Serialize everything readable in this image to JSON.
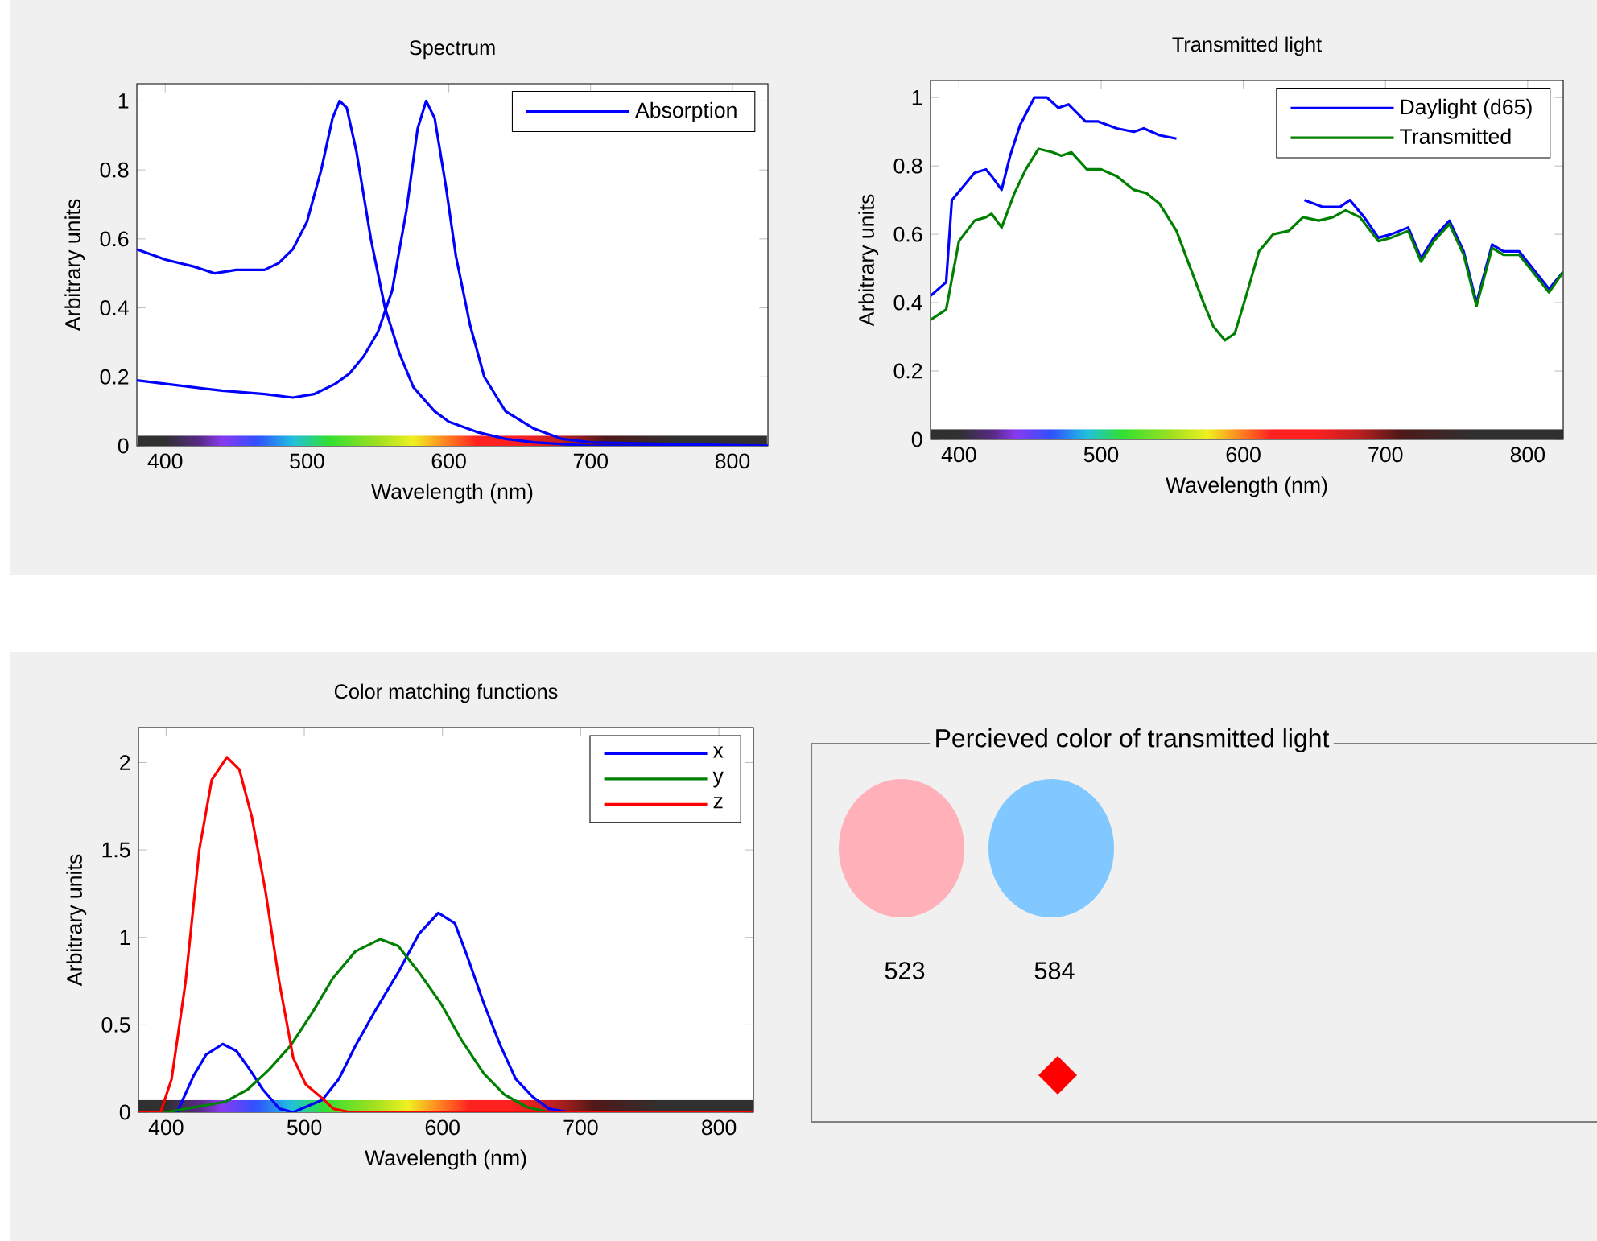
{
  "chart_data": [
    {
      "type": "line",
      "title": "Spectrum",
      "xlabel": "Wavelength (nm)",
      "ylabel": "Arbitrary units",
      "xlim": [
        380,
        825
      ],
      "ylim": [
        0,
        1.05
      ],
      "xticks": [
        400,
        500,
        600,
        700,
        800
      ],
      "yticks": [
        0,
        0.2,
        0.4,
        0.6,
        0.8,
        1
      ],
      "legend": "top right",
      "bands": [
        {
          "axis": "y",
          "from": 0,
          "to": 0.03
        }
      ],
      "series": [
        {
          "name": "Absorption",
          "color": "#0000ff",
          "x": [
            380,
            400,
            420,
            435,
            450,
            470,
            480,
            490,
            500,
            510,
            518,
            523,
            528,
            535,
            545,
            555,
            565,
            575,
            590,
            600,
            620,
            640,
            660,
            700,
            825
          ],
          "values": [
            0.57,
            0.54,
            0.52,
            0.5,
            0.51,
            0.51,
            0.53,
            0.57,
            0.65,
            0.8,
            0.95,
            1.0,
            0.98,
            0.85,
            0.6,
            0.4,
            0.27,
            0.17,
            0.1,
            0.07,
            0.04,
            0.02,
            0.01,
            0.0,
            0.0
          ]
        },
        {
          "color": "#0000ff",
          "x": [
            380,
            400,
            440,
            470,
            490,
            505,
            520,
            530,
            540,
            550,
            560,
            570,
            578,
            584,
            590,
            598,
            605,
            615,
            625,
            640,
            660,
            680,
            700,
            825
          ],
          "values": [
            0.19,
            0.18,
            0.16,
            0.15,
            0.14,
            0.15,
            0.18,
            0.21,
            0.26,
            0.33,
            0.45,
            0.68,
            0.92,
            1.0,
            0.95,
            0.75,
            0.55,
            0.35,
            0.2,
            0.1,
            0.05,
            0.02,
            0.01,
            0.0
          ]
        }
      ]
    },
    {
      "type": "line",
      "title": "Transmitted light",
      "xlabel": "Wavelength (nm)",
      "ylabel": "Arbitrary units",
      "xlim": [
        380,
        825
      ],
      "ylim": [
        0,
        1.05
      ],
      "xticks": [
        400,
        500,
        600,
        700,
        800
      ],
      "yticks": [
        0,
        0.2,
        0.4,
        0.6,
        0.8,
        1
      ],
      "legend": "top right",
      "bands": [
        {
          "axis": "y",
          "from": 0,
          "to": 0.03
        }
      ],
      "series": [
        {
          "name": "Daylight (d65)",
          "color": "#0000ff",
          "x": [
            380,
            391,
            395,
            405,
            411,
            419,
            423,
            430,
            436,
            443,
            453,
            462,
            470,
            477,
            489,
            498,
            511,
            523,
            530,
            541,
            553,
            575,
            600,
            620,
            643,
            656,
            668,
            675,
            685,
            695,
            704,
            716,
            725,
            734,
            745,
            755,
            764,
            775,
            783,
            794,
            815,
            825
          ],
          "values": [
            0.42,
            0.46,
            0.7,
            0.75,
            0.78,
            0.79,
            0.77,
            0.73,
            0.83,
            0.92,
            1.0,
            1.0,
            0.97,
            0.98,
            0.93,
            0.93,
            0.91,
            0.9,
            0.91,
            0.89,
            0.88,
            null,
            null,
            null,
            0.7,
            0.68,
            0.68,
            0.7,
            0.65,
            0.59,
            0.6,
            0.62,
            0.53,
            0.59,
            0.64,
            0.55,
            0.4,
            0.57,
            0.55,
            0.55,
            0.44,
            0.49
          ]
        },
        {
          "name": "Transmitted",
          "color": "#008000",
          "x": [
            380,
            391,
            400,
            411,
            419,
            423,
            430,
            439,
            447,
            456,
            466,
            472,
            479,
            490,
            500,
            511,
            523,
            532,
            541,
            553,
            562,
            572,
            579,
            587,
            594,
            602,
            611,
            621,
            632,
            642,
            653,
            663,
            672,
            682,
            695,
            704,
            716,
            725,
            734,
            745,
            755,
            764,
            775,
            783,
            794,
            815,
            825
          ],
          "values": [
            0.35,
            0.38,
            0.58,
            0.64,
            0.65,
            0.66,
            0.62,
            0.72,
            0.79,
            0.85,
            0.84,
            0.83,
            0.84,
            0.79,
            0.79,
            0.77,
            0.73,
            0.72,
            0.69,
            0.61,
            0.51,
            0.4,
            0.33,
            0.29,
            0.31,
            0.42,
            0.55,
            0.6,
            0.61,
            0.65,
            0.64,
            0.65,
            0.67,
            0.65,
            0.58,
            0.59,
            0.61,
            0.52,
            0.58,
            0.63,
            0.54,
            0.39,
            0.56,
            0.54,
            0.54,
            0.43,
            0.49
          ]
        }
      ]
    },
    {
      "type": "line",
      "title": "Color matching functions",
      "xlabel": "Wavelength (nm)",
      "ylabel": "Arbitrary units",
      "xlim": [
        380,
        825
      ],
      "ylim": [
        0,
        2.2
      ],
      "xticks": [
        400,
        500,
        600,
        700,
        800
      ],
      "yticks": [
        0,
        0.5,
        1,
        1.5,
        2
      ],
      "legend": "top right",
      "bands": [
        {
          "axis": "y",
          "from": 0,
          "to": 0.07
        }
      ],
      "series": [
        {
          "name": "x",
          "color": "#0000ff",
          "x": [
            380,
            408,
            420,
            429,
            441,
            451,
            460,
            470,
            482,
            492,
            513,
            525,
            537,
            552,
            568,
            583,
            597,
            609,
            618,
            630,
            642,
            653,
            665,
            677,
            692,
            825
          ],
          "values": [
            0,
            0,
            0.21,
            0.33,
            0.39,
            0.35,
            0.25,
            0.13,
            0.02,
            0,
            0.07,
            0.19,
            0.38,
            0.59,
            0.8,
            1.02,
            1.14,
            1.08,
            0.89,
            0.62,
            0.38,
            0.19,
            0.09,
            0.02,
            0,
            0
          ]
        },
        {
          "name": "y",
          "color": "#008000",
          "x": [
            380,
            400,
            443,
            459,
            474,
            490,
            505,
            521,
            537,
            555,
            568,
            583,
            599,
            614,
            630,
            645,
            661,
            677,
            825
          ],
          "values": [
            0,
            0,
            0.06,
            0.13,
            0.24,
            0.38,
            0.56,
            0.77,
            0.92,
            0.99,
            0.95,
            0.8,
            0.62,
            0.41,
            0.22,
            0.1,
            0.03,
            0,
            0
          ]
        },
        {
          "name": "z",
          "color": "#ff0000",
          "x": [
            380,
            396,
            404,
            414,
            424,
            433,
            444,
            453,
            462,
            472,
            482,
            492,
            501,
            513,
            521,
            533,
            825
          ],
          "values": [
            0,
            0,
            0.19,
            0.74,
            1.5,
            1.9,
            2.03,
            1.96,
            1.69,
            1.26,
            0.74,
            0.31,
            0.16,
            0.08,
            0.02,
            0,
            0
          ]
        }
      ]
    },
    {
      "type": "other",
      "title": "Percieved color of transmitted light",
      "annotations": [
        "523",
        "584"
      ]
    }
  ]
}
